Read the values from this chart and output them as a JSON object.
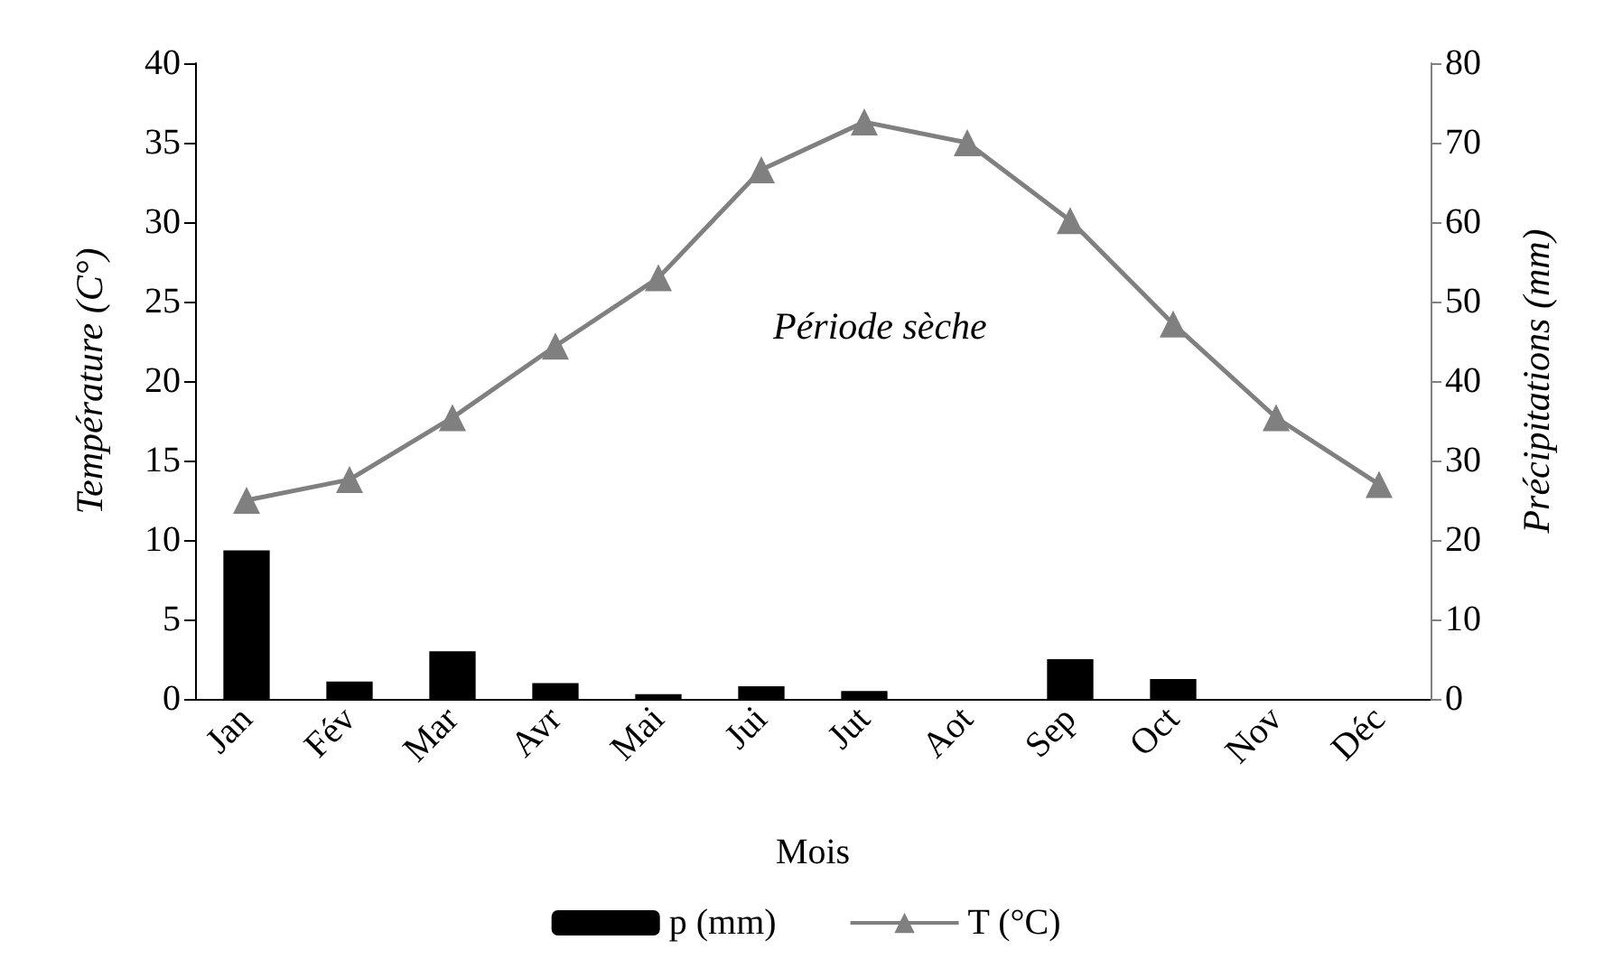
{
  "chart_data": {
    "type": "bar",
    "xlabel": "Mois",
    "ylabel": "Température (C°)",
    "y2label": "Précipitations (mm)",
    "categories": [
      "Jan",
      "Fév",
      "Mar",
      "Avr",
      "Mai",
      "Jui",
      "Jut",
      "Aot",
      "Sep",
      "Oct",
      "Nov",
      "Déc"
    ],
    "series": [
      {
        "name": "p (mm)",
        "axis": "y2",
        "color": "#000000",
        "values": [
          18.7,
          2.2,
          6,
          2,
          0.6,
          1.6,
          1,
          0,
          5,
          2.5,
          0,
          0
        ]
      },
      {
        "name": "T (°C)",
        "type": "line",
        "color": "#808080",
        "marker": "triangle",
        "values": [
          12.5,
          13.8,
          17.7,
          22.2,
          26.5,
          33.3,
          36.3,
          35,
          30.1,
          23.6,
          17.7,
          13.5
        ]
      }
    ],
    "ylim": [
      0,
      40
    ],
    "yticks": [
      0,
      5,
      10,
      15,
      20,
      25,
      30,
      35,
      40
    ],
    "y2lim": [
      0,
      80
    ],
    "y2ticks": [
      0,
      10,
      20,
      30,
      40,
      50,
      60,
      70,
      80
    ],
    "annotations": [
      "Période sèche"
    ],
    "grid": false,
    "legend": "bottom"
  }
}
